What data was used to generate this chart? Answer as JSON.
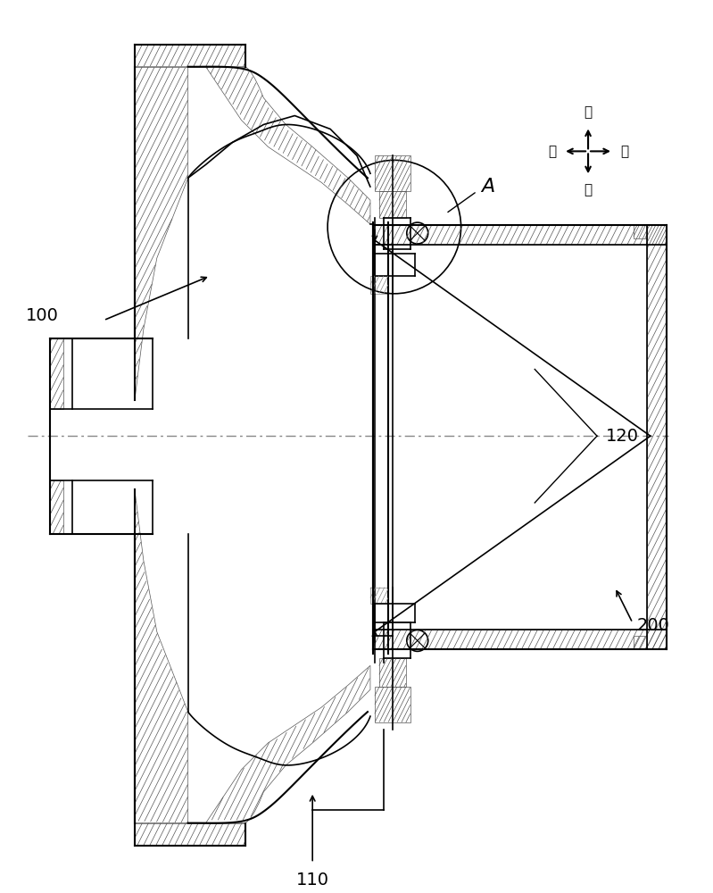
{
  "bg_color": "#ffffff",
  "line_color": "#000000",
  "hatch_color": "#000000",
  "hatch_pattern": "////",
  "centerline_color": "#4a4a4a",
  "label_100": "100",
  "label_110": "110",
  "label_120": "120",
  "label_200": "200",
  "label_A": "A",
  "dir_labels": {
    "wai": "外",
    "nei": "内",
    "hou": "后",
    "qian": "前"
  },
  "title_fontsize": 12,
  "label_fontsize": 14
}
